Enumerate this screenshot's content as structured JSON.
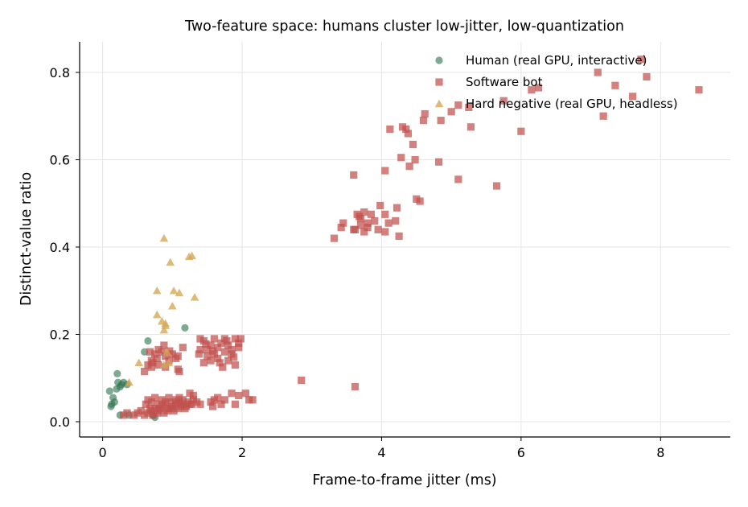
{
  "chart_data": {
    "type": "scatter",
    "title": "Two-feature space: humans cluster low-jitter, low-quantization",
    "xlabel": "Frame-to-frame jitter (ms)",
    "ylabel": "Distinct-value ratio",
    "xlim": [
      -0.33,
      9.0
    ],
    "ylim": [
      -0.035,
      0.87
    ],
    "xticks": [
      0,
      2,
      4,
      6,
      8
    ],
    "xtick_labels": [
      "0",
      "2",
      "4",
      "6",
      "8"
    ],
    "yticks": [
      0.0,
      0.2,
      0.4,
      0.6,
      0.8
    ],
    "ytick_labels": [
      "0.0",
      "0.2",
      "0.4",
      "0.6",
      "0.8"
    ],
    "grid": true,
    "legend_position": "top-right",
    "series": [
      {
        "name": "Human (real GPU, interactive)",
        "marker": "circle",
        "color": "#2e7550",
        "points": [
          [
            0.1,
            0.07
          ],
          [
            0.12,
            0.035
          ],
          [
            0.15,
            0.055
          ],
          [
            0.17,
            0.045
          ],
          [
            0.2,
            0.075
          ],
          [
            0.21,
            0.11
          ],
          [
            0.22,
            0.09
          ],
          [
            0.25,
            0.08
          ],
          [
            0.27,
            0.085
          ],
          [
            0.3,
            0.09
          ],
          [
            0.35,
            0.085
          ],
          [
            0.25,
            0.015
          ],
          [
            0.6,
            0.16
          ],
          [
            0.65,
            0.185
          ],
          [
            1.18,
            0.215
          ],
          [
            0.72,
            0.015
          ],
          [
            0.75,
            0.01
          ],
          [
            0.38,
            0.015
          ],
          [
            0.13,
            0.04
          ]
        ]
      },
      {
        "name": "Software bot",
        "marker": "square",
        "color": "#c0504d",
        "points": [
          [
            7.72,
            0.83
          ],
          [
            7.8,
            0.79
          ],
          [
            7.1,
            0.8
          ],
          [
            7.35,
            0.77
          ],
          [
            8.55,
            0.76
          ],
          [
            7.6,
            0.745
          ],
          [
            6.25,
            0.765
          ],
          [
            6.15,
            0.76
          ],
          [
            5.75,
            0.735
          ],
          [
            5.25,
            0.72
          ],
          [
            5.1,
            0.725
          ],
          [
            7.18,
            0.7
          ],
          [
            5.0,
            0.71
          ],
          [
            4.62,
            0.705
          ],
          [
            4.6,
            0.69
          ],
          [
            4.85,
            0.69
          ],
          [
            5.28,
            0.675
          ],
          [
            6.0,
            0.665
          ],
          [
            4.3,
            0.675
          ],
          [
            4.12,
            0.67
          ],
          [
            4.35,
            0.67
          ],
          [
            4.38,
            0.66
          ],
          [
            4.45,
            0.635
          ],
          [
            4.28,
            0.605
          ],
          [
            4.48,
            0.6
          ],
          [
            4.4,
            0.585
          ],
          [
            4.82,
            0.595
          ],
          [
            3.6,
            0.565
          ],
          [
            4.05,
            0.575
          ],
          [
            5.1,
            0.555
          ],
          [
            5.65,
            0.54
          ],
          [
            4.5,
            0.51
          ],
          [
            4.55,
            0.505
          ],
          [
            3.98,
            0.495
          ],
          [
            4.22,
            0.49
          ],
          [
            3.65,
            0.475
          ],
          [
            3.75,
            0.48
          ],
          [
            3.85,
            0.475
          ],
          [
            4.05,
            0.475
          ],
          [
            4.2,
            0.46
          ],
          [
            4.1,
            0.455
          ],
          [
            3.7,
            0.465
          ],
          [
            3.8,
            0.455
          ],
          [
            3.9,
            0.46
          ],
          [
            3.45,
            0.455
          ],
          [
            3.42,
            0.445
          ],
          [
            3.6,
            0.44
          ],
          [
            3.75,
            0.435
          ],
          [
            3.95,
            0.44
          ],
          [
            4.05,
            0.435
          ],
          [
            4.25,
            0.425
          ],
          [
            3.32,
            0.42
          ],
          [
            3.7,
            0.45
          ],
          [
            3.68,
            0.47
          ],
          [
            3.62,
            0.44
          ],
          [
            3.8,
            0.445
          ],
          [
            1.4,
            0.19
          ],
          [
            1.45,
            0.185
          ],
          [
            1.6,
            0.19
          ],
          [
            1.75,
            0.19
          ],
          [
            1.9,
            0.19
          ],
          [
            1.98,
            0.19
          ],
          [
            1.55,
            0.175
          ],
          [
            1.5,
            0.165
          ],
          [
            1.65,
            0.17
          ],
          [
            1.8,
            0.175
          ],
          [
            1.95,
            0.17
          ],
          [
            1.6,
            0.155
          ],
          [
            1.75,
            0.16
          ],
          [
            1.85,
            0.155
          ],
          [
            1.5,
            0.15
          ],
          [
            1.45,
            0.135
          ],
          [
            1.65,
            0.145
          ],
          [
            1.8,
            0.14
          ],
          [
            1.9,
            0.13
          ],
          [
            1.72,
            0.125
          ],
          [
            1.4,
            0.165
          ],
          [
            1.55,
            0.14
          ],
          [
            1.7,
            0.18
          ],
          [
            1.85,
            0.165
          ],
          [
            1.95,
            0.18
          ],
          [
            1.38,
            0.155
          ],
          [
            1.48,
            0.178
          ],
          [
            1.68,
            0.135
          ],
          [
            1.78,
            0.185
          ],
          [
            1.58,
            0.162
          ],
          [
            1.88,
            0.148
          ],
          [
            0.6,
            0.115
          ],
          [
            0.65,
            0.13
          ],
          [
            0.7,
            0.14
          ],
          [
            0.75,
            0.155
          ],
          [
            0.8,
            0.165
          ],
          [
            0.85,
            0.16
          ],
          [
            0.9,
            0.15
          ],
          [
            0.95,
            0.14
          ],
          [
            0.7,
            0.125
          ],
          [
            0.8,
            0.13
          ],
          [
            0.9,
            0.125
          ],
          [
            1.0,
            0.155
          ],
          [
            1.05,
            0.145
          ],
          [
            1.15,
            0.17
          ],
          [
            0.88,
            0.175
          ],
          [
            0.78,
            0.145
          ],
          [
            0.68,
            0.16
          ],
          [
            0.96,
            0.162
          ],
          [
            1.08,
            0.12
          ],
          [
            0.72,
            0.135
          ],
          [
            1.6,
            0.05
          ],
          [
            1.65,
            0.055
          ],
          [
            1.55,
            0.045
          ],
          [
            1.75,
            0.05
          ],
          [
            1.85,
            0.065
          ],
          [
            1.95,
            0.06
          ],
          [
            2.05,
            0.065
          ],
          [
            2.1,
            0.05
          ],
          [
            2.15,
            0.05
          ],
          [
            1.9,
            0.04
          ],
          [
            1.58,
            0.035
          ],
          [
            1.7,
            0.04
          ],
          [
            0.3,
            0.015
          ],
          [
            0.35,
            0.02
          ],
          [
            0.45,
            0.015
          ],
          [
            0.5,
            0.02
          ],
          [
            0.55,
            0.025
          ],
          [
            0.6,
            0.015
          ],
          [
            0.65,
            0.02
          ],
          [
            0.7,
            0.025
          ],
          [
            0.75,
            0.03
          ],
          [
            0.8,
            0.025
          ],
          [
            0.85,
            0.035
          ],
          [
            0.9,
            0.04
          ],
          [
            0.95,
            0.03
          ],
          [
            1.0,
            0.035
          ],
          [
            1.05,
            0.04
          ],
          [
            1.1,
            0.045
          ],
          [
            1.15,
            0.05
          ],
          [
            1.2,
            0.035
          ],
          [
            1.25,
            0.04
          ],
          [
            1.3,
            0.05
          ],
          [
            1.35,
            0.045
          ],
          [
            1.4,
            0.04
          ],
          [
            0.65,
            0.05
          ],
          [
            0.7,
            0.045
          ],
          [
            0.75,
            0.055
          ],
          [
            0.8,
            0.04
          ],
          [
            0.85,
            0.05
          ],
          [
            0.9,
            0.045
          ],
          [
            0.95,
            0.055
          ],
          [
            1.0,
            0.045
          ],
          [
            1.05,
            0.05
          ],
          [
            1.1,
            0.055
          ],
          [
            1.15,
            0.04
          ],
          [
            1.25,
            0.065
          ],
          [
            1.3,
            0.06
          ],
          [
            0.72,
            0.015
          ],
          [
            0.78,
            0.02
          ],
          [
            0.82,
            0.03
          ],
          [
            0.88,
            0.02
          ],
          [
            0.92,
            0.025
          ],
          [
            0.98,
            0.03
          ],
          [
            1.02,
            0.025
          ],
          [
            1.08,
            0.03
          ],
          [
            1.12,
            0.035
          ],
          [
            1.18,
            0.03
          ],
          [
            1.22,
            0.045
          ],
          [
            1.28,
            0.04
          ],
          [
            0.68,
            0.03
          ],
          [
            0.62,
            0.04
          ],
          [
            2.85,
            0.095
          ],
          [
            3.62,
            0.08
          ],
          [
            1.08,
            0.15
          ],
          [
            1.1,
            0.115
          ]
        ]
      },
      {
        "name": "Hard negative (real GPU, headless)",
        "marker": "triangle",
        "color": "#d4a752",
        "points": [
          [
            0.88,
            0.42
          ],
          [
            1.28,
            0.38
          ],
          [
            1.24,
            0.378
          ],
          [
            0.97,
            0.365
          ],
          [
            0.78,
            0.3
          ],
          [
            1.02,
            0.3
          ],
          [
            1.1,
            0.295
          ],
          [
            1.32,
            0.285
          ],
          [
            1.0,
            0.265
          ],
          [
            0.78,
            0.245
          ],
          [
            0.85,
            0.23
          ],
          [
            0.9,
            0.225
          ],
          [
            0.88,
            0.21
          ],
          [
            0.92,
            0.16
          ],
          [
            0.52,
            0.135
          ],
          [
            0.88,
            0.13
          ],
          [
            0.95,
            0.135
          ],
          [
            0.38,
            0.09
          ],
          [
            0.9,
            0.22
          ]
        ]
      }
    ]
  }
}
